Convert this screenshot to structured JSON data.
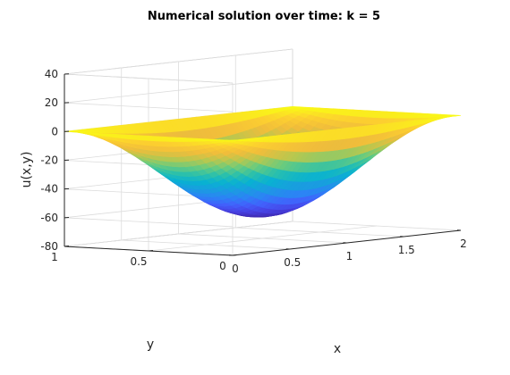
{
  "chart_data": {
    "type": "surface",
    "title": "Numerical solution over time: k = 5",
    "xlabel": "x",
    "ylabel": "y",
    "zlabel": "u(x,y)",
    "xlim": [
      0,
      2
    ],
    "ylim": [
      0,
      1
    ],
    "zlim": [
      -80,
      40
    ],
    "xticks": [
      0,
      0.5,
      1,
      1.5,
      2
    ],
    "xtick_labels": [
      "0",
      "0.5",
      "1",
      "1.5",
      "2"
    ],
    "yticks": [
      0,
      0.5,
      1
    ],
    "ytick_labels": [
      "0",
      "0.5",
      "1"
    ],
    "zticks": [
      -80,
      -60,
      -40,
      -20,
      0,
      20,
      40
    ],
    "ztick_labels": [
      "-80",
      "-60",
      "-40",
      "-20",
      "0",
      "20",
      "40"
    ],
    "grid": true,
    "colormap": "parula",
    "surface": {
      "function": "-A*sin(pi*x/2)*sin(pi*y)",
      "amplitude": 65,
      "boundary_value": 0,
      "min_value": -65,
      "min_location": [
        1,
        0.5
      ]
    }
  }
}
